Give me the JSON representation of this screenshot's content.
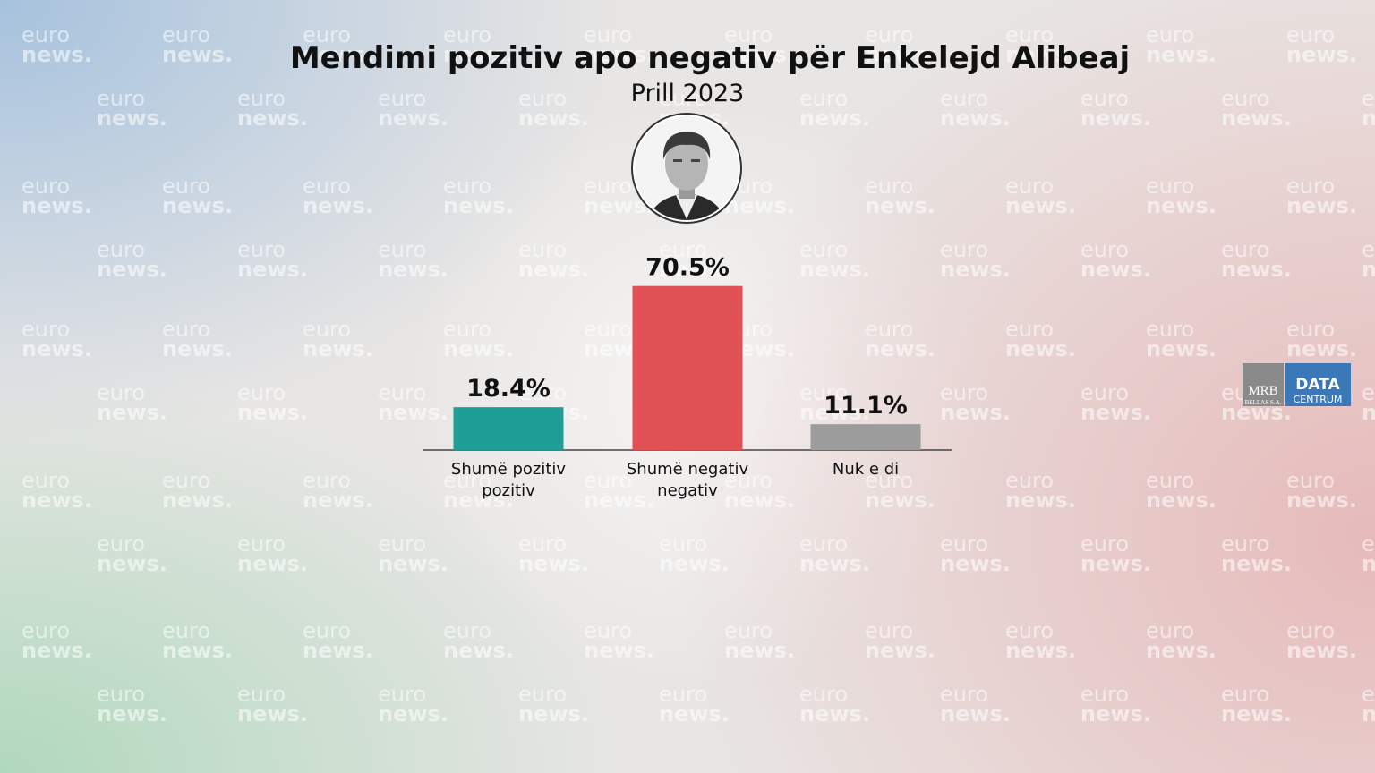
{
  "chart_data": {
    "type": "bar",
    "title": "Mendimi pozitiv apo negativ për Enkelejd Alibeaj",
    "subtitle": "Prill 2023",
    "categories": [
      "Shumë pozitiv pozitiv",
      "Shumë negativ negativ",
      "Nuk e di"
    ],
    "values": [
      18.4,
      70.5,
      11.1
    ],
    "value_labels": [
      "18.4%",
      "70.5%",
      "11.1%"
    ],
    "colors": [
      "#1e9e96",
      "#e05156",
      "#9c9c9c"
    ]
  },
  "watermark": {
    "line1": "euro",
    "line2": "news."
  },
  "logo": {
    "left": "MRB",
    "left_sub": "BELLAS S.A.",
    "right": "DATA",
    "right_sub": "CENTRUM"
  }
}
